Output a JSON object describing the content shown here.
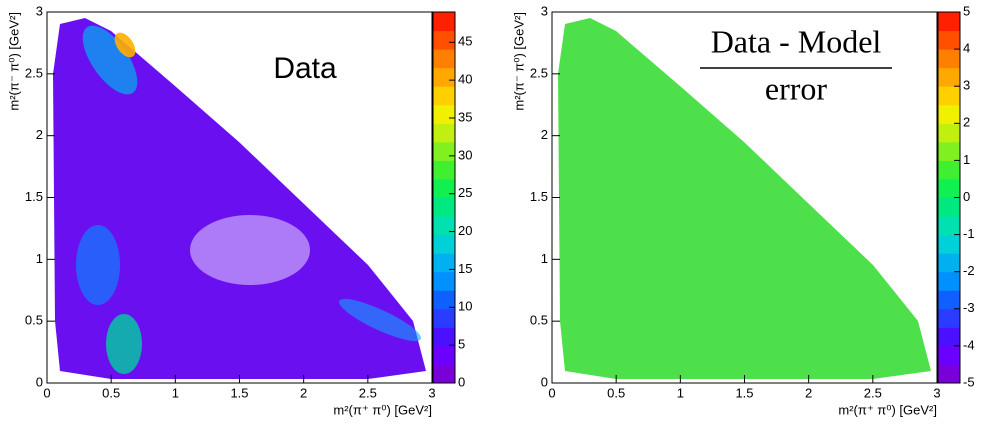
{
  "chart_data": [
    {
      "type": "heatmap",
      "annotations": [
        "Data"
      ],
      "xlabel": "m²(π⁺ π⁰) [GeV²]",
      "ylabel": "m²(π⁻ π⁰) [GeV²]",
      "xlim": [
        0,
        3
      ],
      "ylim": [
        0,
        3
      ],
      "xticks": [
        0,
        0.5,
        1,
        1.5,
        2,
        2.5,
        3
      ],
      "yticks": [
        0,
        0.5,
        1,
        1.5,
        2,
        2.5,
        3
      ],
      "zlim": [
        0,
        49
      ],
      "zticks": [
        0,
        5,
        10,
        15,
        20,
        25,
        30,
        35,
        40,
        45
      ],
      "palette": [
        "#7a00d9",
        "#6b00ff",
        "#4a10ff",
        "#2a3cff",
        "#1060ff",
        "#0090ff",
        "#00b0f0",
        "#00d0d8",
        "#00e0b0",
        "#00e880",
        "#10f050",
        "#40f030",
        "#80f020",
        "#c0f010",
        "#f0f000",
        "#ffd000",
        "#ffa800",
        "#ff8000",
        "#ff5000",
        "#ff2000"
      ]
    },
    {
      "type": "heatmap",
      "annotations": [
        "Data - Model",
        "error"
      ],
      "xlabel": "m²(π⁺ π⁰) [GeV²]",
      "ylabel": "m²(π⁻ π⁰) [GeV²]",
      "xlim": [
        0,
        3
      ],
      "ylim": [
        0,
        3
      ],
      "xticks": [
        0,
        0.5,
        1,
        1.5,
        2,
        2.5,
        3
      ],
      "yticks": [
        0,
        0.5,
        1,
        1.5,
        2,
        2.5,
        3
      ],
      "zlim": [
        -5,
        5
      ],
      "zticks": [
        -5,
        -4,
        -3,
        -2,
        -1,
        0,
        1,
        2,
        3,
        4,
        5
      ],
      "palette": [
        "#7a00d9",
        "#6b00ff",
        "#4a10ff",
        "#2a3cff",
        "#1060ff",
        "#0090ff",
        "#00b0f0",
        "#00d0d8",
        "#00e0b0",
        "#00e880",
        "#10f050",
        "#40f030",
        "#80f020",
        "#c0f010",
        "#f0f000",
        "#ffd000",
        "#ffa800",
        "#ff8000",
        "#ff5000",
        "#ff2000"
      ]
    }
  ]
}
